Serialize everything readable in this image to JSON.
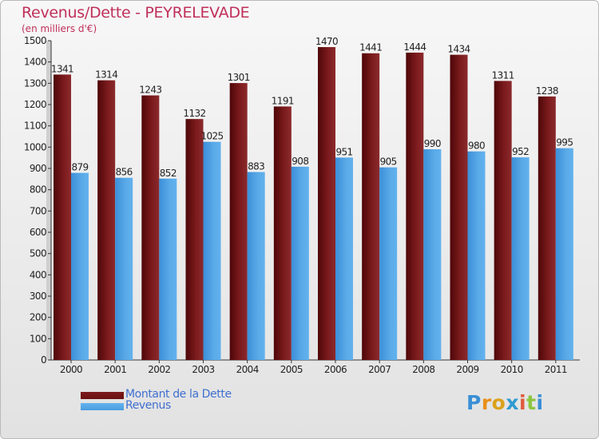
{
  "chart_data": {
    "type": "bar",
    "title": "Revenus/Dette - PEYRELEVADE",
    "subtitle": "(en milliers d'€)",
    "categories": [
      "2000",
      "2001",
      "2002",
      "2003",
      "2004",
      "2005",
      "2006",
      "2007",
      "2008",
      "2009",
      "2010",
      "2011"
    ],
    "series": [
      {
        "name": "Montant de la Dette",
        "color": "#6b0f10",
        "values": [
          1341,
          1314,
          1243,
          1132,
          1301,
          1191,
          1470,
          1441,
          1444,
          1434,
          1311,
          1238
        ]
      },
      {
        "name": "Revenus",
        "color": "#4a9de0",
        "values": [
          879,
          856,
          852,
          1025,
          883,
          908,
          951,
          905,
          990,
          980,
          952,
          995
        ]
      }
    ],
    "ylim": [
      0,
      1500
    ],
    "yticks": [
      0,
      100,
      200,
      300,
      400,
      500,
      600,
      700,
      800,
      900,
      1000,
      1100,
      1200,
      1300,
      1400,
      1500
    ],
    "grid": false,
    "legend": "bottom-left"
  },
  "logo": {
    "letters": [
      "P",
      "r",
      "o",
      "x",
      "i",
      "t",
      "i"
    ],
    "colors": [
      "#3a8fd6",
      "#e8901a",
      "#d9a21a",
      "#2f9ad0",
      "#e05a3a",
      "#8cc63f",
      "#3a8fd6"
    ]
  }
}
